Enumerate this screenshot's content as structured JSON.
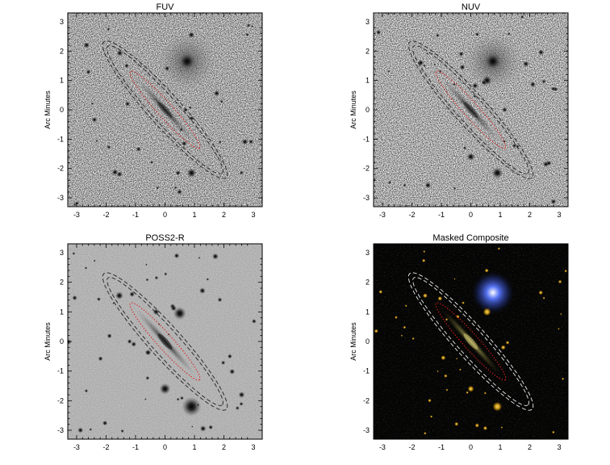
{
  "figure": {
    "ylabel": "Arc Minutes",
    "xlim": [
      -3.3,
      3.3
    ],
    "ylim": [
      -3.3,
      3.3
    ],
    "x_ticks": [
      "-3",
      "-2",
      "-1",
      "0",
      "1",
      "2",
      "3"
    ],
    "y_ticks": [
      "3",
      "2",
      "1",
      "0",
      "-1",
      "-2",
      "-3"
    ],
    "panels": [
      {
        "title": "FUV",
        "style": "light",
        "background": "#ececec"
      },
      {
        "title": "NUV",
        "style": "light",
        "background": "#f1f1f1"
      },
      {
        "title": "POSS2-R",
        "style": "gray",
        "background": "#bdbdbd"
      },
      {
        "title": "Masked Composite",
        "style": "dark",
        "background": "#050505"
      }
    ],
    "colors": {
      "outer_ellipse": "#222222",
      "outer_ellipse_composite": "#eeeeee",
      "inner_ellipse": "#e02020",
      "star_composite": "#e0b020",
      "star_blue": "#8aa0ff"
    }
  }
}
